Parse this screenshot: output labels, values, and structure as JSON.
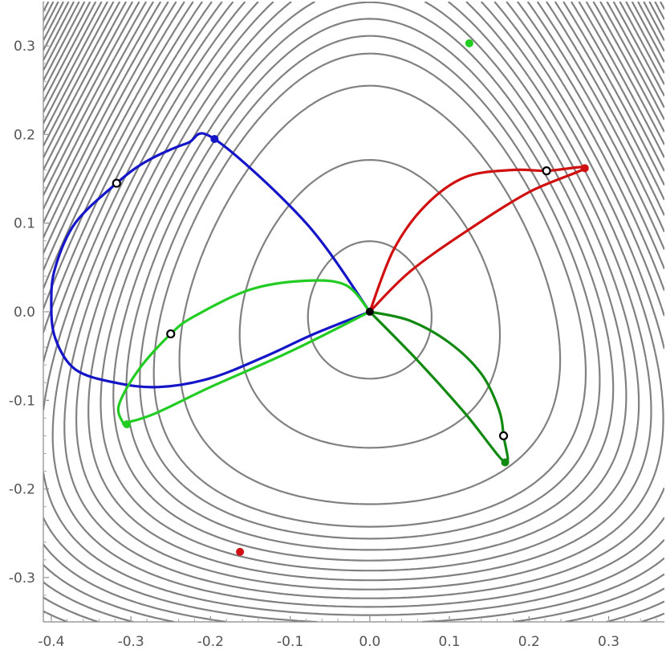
{
  "chart_data": {
    "type": "contour",
    "title": "",
    "xlabel": "",
    "ylabel": "",
    "xlim": [
      -0.41,
      0.37
    ],
    "ylim": [
      -0.35,
      0.35
    ],
    "grid": false,
    "legend": "none",
    "x_ticks": [
      -0.4,
      -0.3,
      -0.2,
      -0.1,
      0.0,
      0.1,
      0.2,
      0.3
    ],
    "x_tick_labels": [
      "-0.4",
      "-0.3",
      "-0.2",
      "-0.1",
      "0.0",
      "0.1",
      "0.2",
      "0.3"
    ],
    "y_ticks": [
      0.3,
      0.2,
      0.1,
      0.0,
      -0.1,
      -0.2,
      -0.3
    ],
    "y_tick_labels": [
      "0.3",
      "0.2",
      "0.1",
      "0.0",
      "-0.1",
      "-0.2",
      "-0.3"
    ],
    "contour_color": "#808080",
    "colors": {
      "blue": "#1515c8",
      "red": "#d01010",
      "light_green": "#22cc22",
      "dark_green": "#128a12",
      "marker_black": "#000000"
    },
    "center_point": [
      0.0,
      0.0
    ],
    "series": [
      {
        "color": "#1515c8",
        "curve": [
          [
            0.0,
            0.0
          ],
          [
            -0.08,
            0.1
          ],
          [
            -0.195,
            0.195
          ],
          [
            -0.23,
            0.19
          ],
          [
            -0.28,
            0.17
          ],
          [
            -0.318,
            0.145
          ],
          [
            -0.37,
            0.1
          ],
          [
            -0.395,
            0.05
          ],
          [
            -0.4,
            0.01
          ],
          [
            -0.395,
            -0.03
          ],
          [
            -0.37,
            -0.065
          ],
          [
            -0.32,
            -0.08
          ],
          [
            -0.265,
            -0.085
          ],
          [
            -0.2,
            -0.075
          ],
          [
            -0.13,
            -0.05
          ],
          [
            -0.07,
            -0.025
          ],
          [
            0.0,
            0.0
          ]
        ],
        "endpoint": [
          -0.195,
          0.195
        ],
        "open_marker": [
          -0.318,
          0.145
        ]
      },
      {
        "color": "#22cc22",
        "curve": [
          [
            0.0,
            0.0
          ],
          [
            -0.03,
            0.03
          ],
          [
            -0.08,
            0.035
          ],
          [
            -0.15,
            0.025
          ],
          [
            -0.22,
            -0.005
          ],
          [
            -0.25,
            -0.025
          ],
          [
            -0.29,
            -0.065
          ],
          [
            -0.315,
            -0.105
          ],
          [
            -0.31,
            -0.125
          ],
          [
            -0.305,
            -0.125
          ],
          [
            -0.27,
            -0.115
          ],
          [
            -0.2,
            -0.085
          ],
          [
            -0.1,
            -0.045
          ],
          [
            0.0,
            0.0
          ]
        ],
        "endpoint": [
          -0.305,
          -0.127
        ],
        "open_marker": [
          -0.25,
          -0.025
        ]
      },
      {
        "color": "#d01010",
        "curve": [
          [
            0.0,
            0.0
          ],
          [
            0.03,
            0.07
          ],
          [
            0.07,
            0.12
          ],
          [
            0.12,
            0.152
          ],
          [
            0.18,
            0.16
          ],
          [
            0.222,
            0.159
          ],
          [
            0.27,
            0.162
          ],
          [
            0.2,
            0.135
          ],
          [
            0.12,
            0.09
          ],
          [
            0.05,
            0.045
          ],
          [
            0.0,
            0.0
          ]
        ],
        "endpoint": [
          0.27,
          0.162
        ],
        "open_marker": [
          0.222,
          0.159
        ]
      },
      {
        "color": "#128a12",
        "curve": [
          [
            0.0,
            0.0
          ],
          [
            0.05,
            -0.01
          ],
          [
            0.1,
            -0.035
          ],
          [
            0.14,
            -0.07
          ],
          [
            0.162,
            -0.11
          ],
          [
            0.168,
            -0.14
          ],
          [
            0.17,
            -0.17
          ],
          [
            0.12,
            -0.115
          ],
          [
            0.06,
            -0.055
          ],
          [
            0.0,
            0.0
          ]
        ],
        "endpoint": [
          0.17,
          -0.17
        ],
        "open_marker": [
          0.168,
          -0.14
        ]
      }
    ],
    "isolated_points": [
      {
        "color": "#22cc22",
        "point": [
          0.125,
          0.303
        ]
      },
      {
        "color": "#d01010",
        "point": [
          -0.163,
          -0.271
        ]
      }
    ]
  }
}
